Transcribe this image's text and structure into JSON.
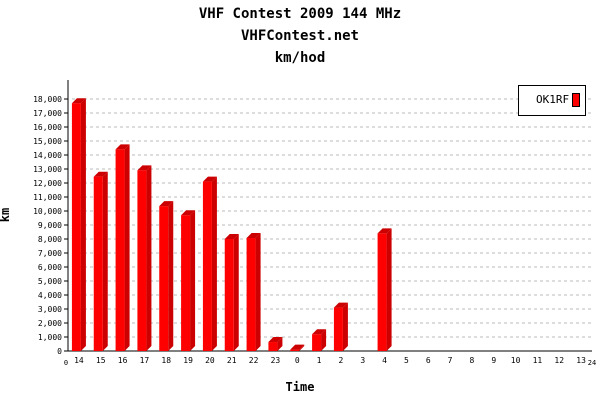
{
  "chart_data": {
    "type": "bar",
    "title": "VHF Contest 2009 144 MHz",
    "subtitle": "VHFContest.net",
    "subtitle2": "km/hod",
    "xlabel": "Time",
    "ylabel": "km",
    "x_axis_start": "0",
    "x_axis_end": "24",
    "categories": [
      "14",
      "15",
      "16",
      "17",
      "18",
      "19",
      "20",
      "21",
      "22",
      "23",
      "0",
      "1",
      "2",
      "3",
      "4",
      "5",
      "6",
      "7",
      "8",
      "9",
      "10",
      "11",
      "12",
      "13"
    ],
    "series": [
      {
        "name": "OK1RF",
        "color": "#ff0000",
        "values": [
          17700,
          12450,
          14400,
          12900,
          10350,
          9700,
          12100,
          8000,
          8070,
          640,
          100,
          1200,
          3100,
          0,
          8400,
          0,
          0,
          0,
          0,
          0,
          0,
          0,
          0,
          0
        ]
      }
    ],
    "ylim": [
      0,
      18000
    ],
    "yticks": [
      "0",
      "1,000",
      "2,000",
      "3,000",
      "4,000",
      "5,000",
      "6,000",
      "7,000",
      "8,000",
      "9,000",
      "10,000",
      "11,000",
      "12,000",
      "13,000",
      "14,000",
      "15,000",
      "16,000",
      "17,000",
      "18,000"
    ],
    "grid": true,
    "legend": "top-right"
  }
}
